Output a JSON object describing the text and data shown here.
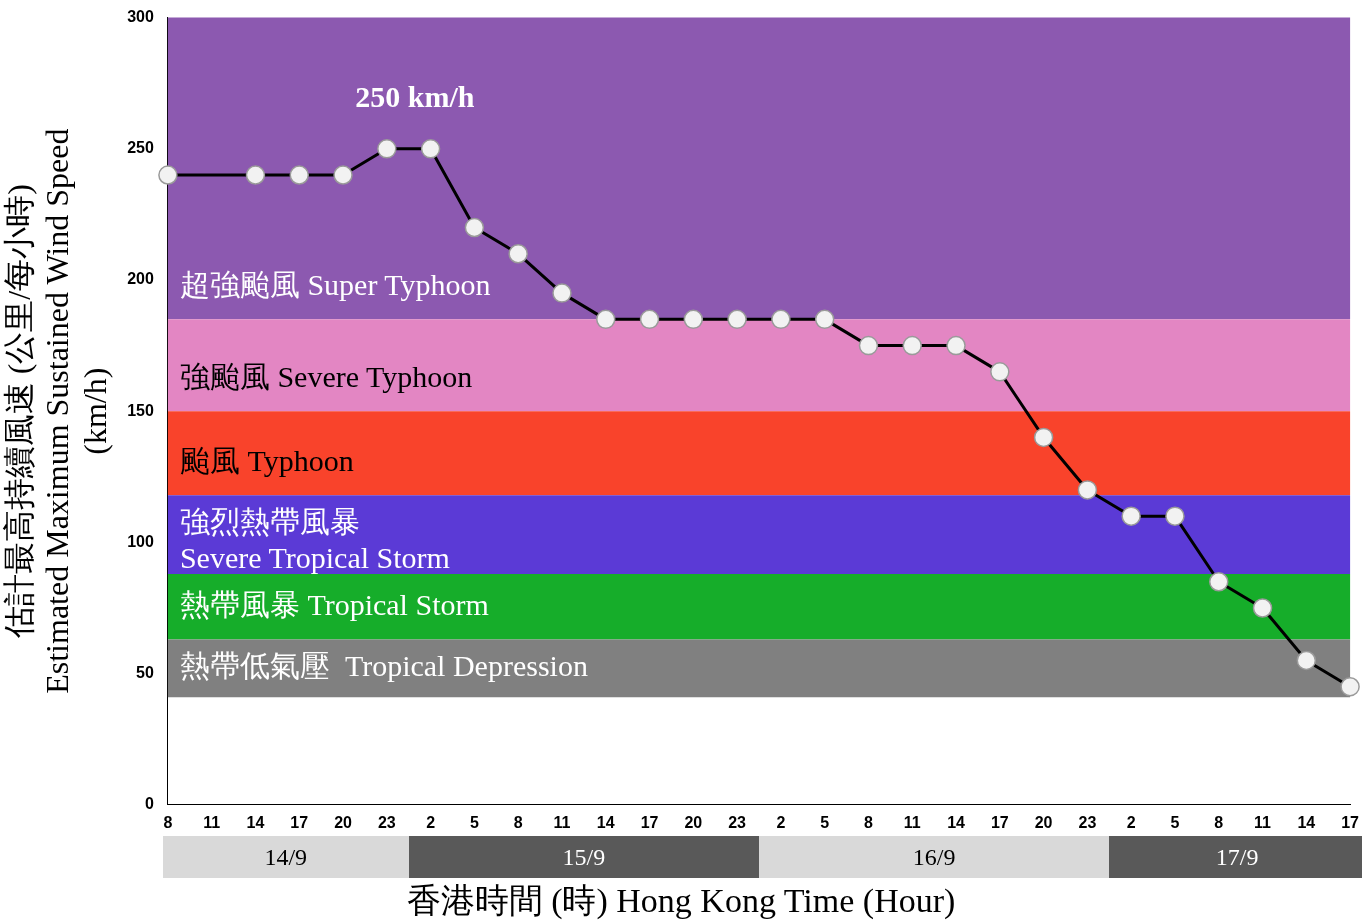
{
  "chart_data": {
    "type": "line",
    "ylabel": "估計最高持續風速 (公里/每小時)\nEstimated Maximum Sustained Wind Speed\n(km/h)",
    "xlabel": "香港時間  (時) Hong Kong Time (Hour)",
    "categories": [
      "8",
      "11",
      "14",
      "17",
      "20",
      "23",
      "2",
      "5",
      "8",
      "11",
      "14",
      "17",
      "20",
      "23",
      "2",
      "5",
      "8",
      "11",
      "14",
      "17",
      "20",
      "23",
      "2",
      "5",
      "8",
      "11",
      "14",
      "17"
    ],
    "series": [
      {
        "color": "#000000",
        "values": [
          240,
          null,
          240,
          240,
          240,
          250,
          250,
          220,
          210,
          195,
          185,
          185,
          185,
          185,
          185,
          185,
          175,
          175,
          175,
          165,
          140,
          120,
          110,
          110,
          85,
          75,
          55,
          45
        ]
      }
    ],
    "ylim": [
      0,
      300
    ],
    "yticks": [
      0,
      50,
      100,
      150,
      200,
      250,
      300
    ],
    "grid": false,
    "legend": false,
    "marker": "circle",
    "line_style": "solid",
    "bands": [
      {
        "axis": "y",
        "from": 185,
        "to": 300,
        "label": "超強颱風 Super Typhoon",
        "color": "#8c59b0"
      },
      {
        "axis": "y",
        "from": 150,
        "to": 185,
        "label": "強颱風 Severe Typhoon",
        "color": "#e386c3"
      },
      {
        "axis": "y",
        "from": 118,
        "to": 150,
        "label": "颱風 Typhoon",
        "color": "#f9432b"
      },
      {
        "axis": "y",
        "from": 88,
        "to": 118,
        "label": "強烈熱帶風暴\nSevere Tropical Storm",
        "color": "#5b3ad6"
      },
      {
        "axis": "y",
        "from": 63,
        "to": 88,
        "label": "熱帶風暴 Tropical Storm",
        "color": "#16ad2a"
      },
      {
        "axis": "y",
        "from": 41,
        "to": 63,
        "label": "熱帶低氣壓  Tropical Depression",
        "color": "#808080"
      }
    ],
    "annotations": [
      {
        "text": "250 km/h",
        "x": "23",
        "y": 250
      },
      "14/9",
      "15/9",
      "16/9",
      "17/9"
    ]
  }
}
